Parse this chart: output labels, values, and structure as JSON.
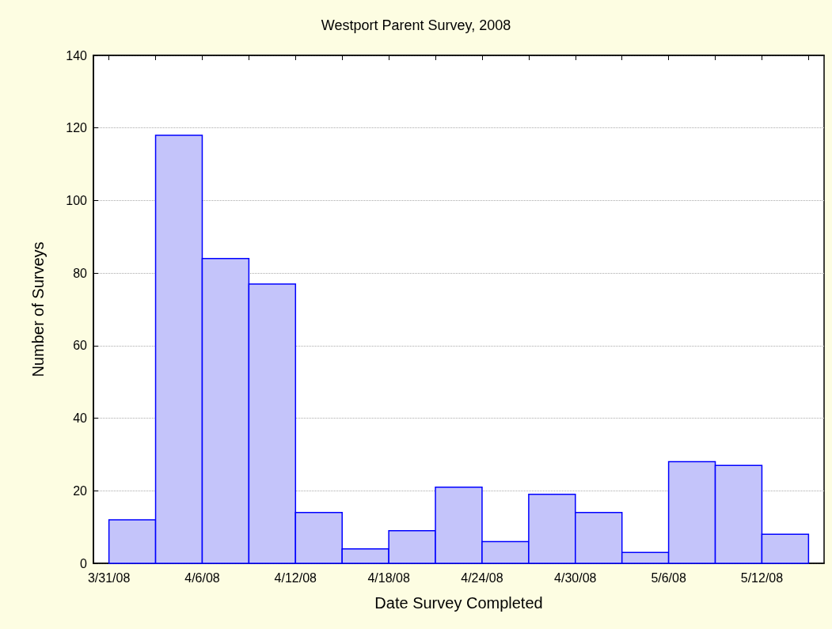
{
  "chart_data": {
    "type": "histogram",
    "title": "Westport Parent Survey, 2008",
    "xlabel": "Date Survey Completed",
    "ylabel": "Number of Surveys",
    "bins": [
      "2008-03-31",
      "2008-04-03",
      "2008-04-06",
      "2008-04-09",
      "2008-04-12",
      "2008-04-15",
      "2008-04-18",
      "2008-04-21",
      "2008-04-24",
      "2008-04-27",
      "2008-04-30",
      "2008-05-03",
      "2008-05-06",
      "2008-05-09",
      "2008-05-12",
      "2008-05-15"
    ],
    "values": [
      12,
      118,
      84,
      77,
      14,
      4,
      9,
      21,
      6,
      19,
      14,
      3,
      28,
      27,
      8
    ],
    "color": "#c4c4fa",
    "xlim": [
      "2008-03-30",
      "2008-05-16"
    ],
    "xticks": [
      {
        "value": "2008-03-31",
        "label": "3/31/08"
      },
      {
        "value": "2008-04-03",
        "label": null
      },
      {
        "value": "2008-04-06",
        "label": "4/6/08"
      },
      {
        "value": "2008-04-09",
        "label": null
      },
      {
        "value": "2008-04-12",
        "label": "4/12/08"
      },
      {
        "value": "2008-04-15",
        "label": null
      },
      {
        "value": "2008-04-18",
        "label": "4/18/08"
      },
      {
        "value": "2008-04-21",
        "label": null
      },
      {
        "value": "2008-04-24",
        "label": "4/24/08"
      },
      {
        "value": "2008-04-27",
        "label": null
      },
      {
        "value": "2008-04-30",
        "label": "4/30/08"
      },
      {
        "value": "2008-05-03",
        "label": null
      },
      {
        "value": "2008-05-06",
        "label": "5/6/08"
      },
      {
        "value": "2008-05-09",
        "label": null
      },
      {
        "value": "2008-05-12",
        "label": "5/12/08"
      },
      {
        "value": "2008-05-15",
        "label": null
      }
    ],
    "ylim": [
      0,
      140
    ],
    "yticks": [
      0,
      20,
      40,
      60,
      80,
      100,
      120,
      140
    ],
    "grid": "y"
  }
}
